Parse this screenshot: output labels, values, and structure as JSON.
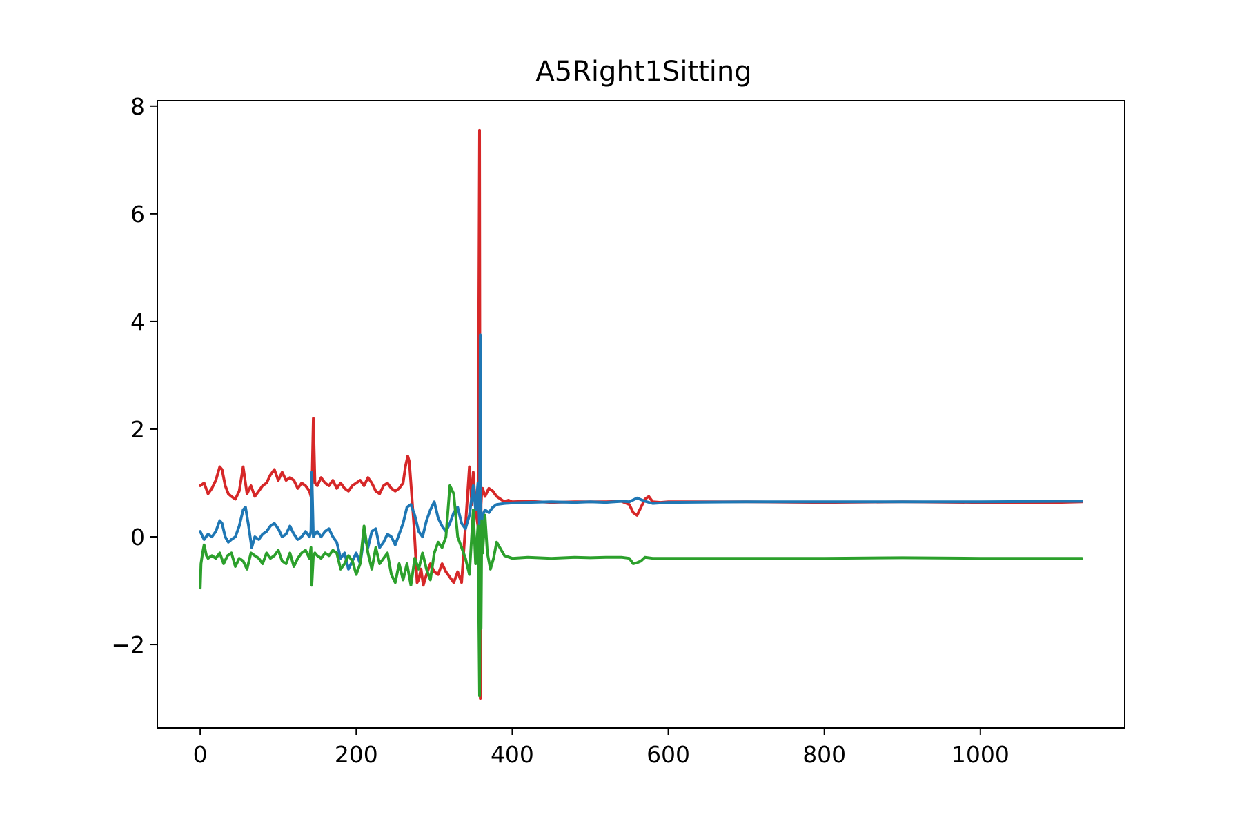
{
  "chart_data": {
    "type": "line",
    "title": "A5Right1Sitting",
    "xlabel": "",
    "ylabel": "",
    "xlim": [
      -55,
      1185
    ],
    "ylim": [
      -3.55,
      8.1
    ],
    "xticks": [
      0,
      200,
      400,
      600,
      800,
      1000
    ],
    "xtick_labels": [
      "0",
      "200",
      "400",
      "600",
      "800",
      "1000"
    ],
    "yticks": [
      -2,
      0,
      2,
      4,
      6,
      8
    ],
    "ytick_labels": [
      "−2",
      "0",
      "2",
      "4",
      "6",
      "8"
    ],
    "grid": false,
    "series": [
      {
        "color": "#d62728",
        "x": [
          0,
          5,
          10,
          15,
          20,
          25,
          28,
          32,
          36,
          40,
          45,
          50,
          55,
          60,
          65,
          70,
          75,
          80,
          85,
          90,
          95,
          100,
          105,
          110,
          115,
          120,
          125,
          130,
          135,
          140,
          142,
          143,
          145,
          147,
          150,
          155,
          160,
          165,
          170,
          175,
          180,
          185,
          190,
          195,
          200,
          205,
          210,
          215,
          220,
          225,
          230,
          235,
          240,
          245,
          250,
          255,
          260,
          263,
          266,
          268,
          270,
          272,
          274,
          276,
          278,
          280,
          283,
          286,
          290,
          295,
          300,
          305,
          310,
          315,
          320,
          325,
          330,
          335,
          340,
          345,
          348,
          350,
          353,
          356,
          358,
          359,
          360,
          361,
          362,
          365,
          370,
          375,
          380,
          385,
          390,
          395,
          400,
          420,
          450,
          480,
          500,
          520,
          540,
          550,
          555,
          560,
          565,
          570,
          575,
          580,
          590,
          600,
          700,
          800,
          900,
          1000,
          1100,
          1130
        ],
        "values": [
          0.95,
          1.0,
          0.8,
          0.9,
          1.05,
          1.3,
          1.25,
          0.95,
          0.8,
          0.75,
          0.7,
          0.85,
          1.3,
          0.8,
          0.95,
          0.75,
          0.85,
          0.95,
          1.0,
          1.15,
          1.25,
          1.05,
          1.2,
          1.05,
          1.1,
          1.05,
          0.9,
          1.0,
          0.95,
          0.85,
          0.75,
          0.8,
          2.2,
          1.0,
          0.95,
          1.1,
          1.0,
          0.95,
          1.05,
          0.9,
          1.0,
          0.9,
          0.85,
          0.95,
          1.0,
          1.05,
          0.95,
          1.1,
          1.0,
          0.85,
          0.8,
          0.95,
          1.0,
          0.9,
          0.85,
          0.9,
          1.0,
          1.3,
          1.5,
          1.4,
          1.0,
          0.6,
          0.2,
          -0.3,
          -0.85,
          -0.8,
          -0.6,
          -0.9,
          -0.7,
          -0.5,
          -0.65,
          -0.7,
          -0.5,
          -0.65,
          -0.75,
          -0.85,
          -0.65,
          -0.85,
          0.2,
          1.3,
          0.6,
          1.2,
          0.5,
          0.2,
          7.55,
          -3.0,
          0.6,
          0.85,
          0.9,
          0.75,
          0.9,
          0.85,
          0.75,
          0.7,
          0.65,
          0.68,
          0.65,
          0.66,
          0.64,
          0.65,
          0.65,
          0.65,
          0.66,
          0.6,
          0.45,
          0.4,
          0.55,
          0.7,
          0.75,
          0.65,
          0.64,
          0.65,
          0.65,
          0.64,
          0.65,
          0.64,
          0.64,
          0.65
        ]
      },
      {
        "color": "#1f77b4",
        "x": [
          0,
          5,
          10,
          15,
          20,
          25,
          28,
          32,
          36,
          40,
          45,
          50,
          55,
          58,
          62,
          66,
          70,
          75,
          80,
          85,
          90,
          95,
          100,
          105,
          110,
          115,
          120,
          125,
          130,
          135,
          140,
          142,
          143,
          145,
          147,
          150,
          155,
          160,
          165,
          170,
          175,
          180,
          185,
          190,
          195,
          200,
          205,
          210,
          215,
          220,
          225,
          230,
          235,
          240,
          245,
          250,
          255,
          260,
          265,
          270,
          275,
          280,
          285,
          290,
          295,
          300,
          305,
          310,
          315,
          320,
          325,
          330,
          335,
          340,
          345,
          350,
          353,
          356,
          358,
          359,
          360,
          361,
          362,
          365,
          370,
          375,
          380,
          390,
          400,
          420,
          450,
          480,
          500,
          520,
          540,
          550,
          560,
          570,
          580,
          600,
          700,
          800,
          900,
          1000,
          1100,
          1130
        ],
        "values": [
          0.1,
          -0.05,
          0.05,
          0.0,
          0.1,
          0.3,
          0.25,
          0.0,
          -0.1,
          -0.05,
          0.0,
          0.2,
          0.5,
          0.55,
          0.2,
          -0.2,
          0.0,
          -0.05,
          0.05,
          0.1,
          0.2,
          0.25,
          0.15,
          0.0,
          0.05,
          0.2,
          0.05,
          -0.05,
          0.0,
          0.1,
          0.0,
          0.1,
          1.2,
          0.0,
          0.05,
          0.1,
          0.0,
          0.1,
          0.15,
          0.0,
          -0.1,
          -0.4,
          -0.3,
          -0.6,
          -0.45,
          -0.3,
          -0.5,
          0.0,
          -0.2,
          0.1,
          0.15,
          -0.2,
          -0.1,
          0.05,
          0.0,
          -0.15,
          0.05,
          0.25,
          0.55,
          0.6,
          0.4,
          0.1,
          0.0,
          0.3,
          0.5,
          0.65,
          0.35,
          0.2,
          0.1,
          0.25,
          0.45,
          0.55,
          0.25,
          0.15,
          0.4,
          0.95,
          0.5,
          1.0,
          0.2,
          3.75,
          0.0,
          0.3,
          0.4,
          0.5,
          0.45,
          0.55,
          0.6,
          0.62,
          0.63,
          0.64,
          0.65,
          0.64,
          0.65,
          0.64,
          0.66,
          0.65,
          0.72,
          0.66,
          0.62,
          0.64,
          0.65,
          0.65,
          0.65,
          0.65,
          0.66,
          0.66
        ]
      },
      {
        "color": "#2ca02c",
        "x": [
          0,
          1,
          3,
          5,
          8,
          10,
          15,
          20,
          25,
          30,
          35,
          40,
          45,
          50,
          55,
          60,
          65,
          70,
          75,
          80,
          85,
          90,
          95,
          100,
          105,
          110,
          115,
          120,
          125,
          130,
          135,
          140,
          142,
          143,
          145,
          147,
          150,
          155,
          160,
          165,
          170,
          175,
          180,
          185,
          190,
          195,
          200,
          205,
          210,
          215,
          220,
          225,
          230,
          235,
          240,
          245,
          250,
          255,
          260,
          265,
          270,
          275,
          280,
          285,
          290,
          295,
          300,
          305,
          310,
          315,
          320,
          325,
          330,
          335,
          340,
          345,
          350,
          353,
          356,
          358,
          359,
          360,
          361,
          362,
          365,
          368,
          372,
          376,
          380,
          390,
          400,
          420,
          450,
          480,
          500,
          520,
          540,
          550,
          555,
          560,
          565,
          570,
          580,
          600,
          700,
          800,
          900,
          1000,
          1100,
          1130
        ],
        "values": [
          -0.95,
          -0.5,
          -0.3,
          -0.15,
          -0.35,
          -0.4,
          -0.35,
          -0.4,
          -0.3,
          -0.5,
          -0.35,
          -0.3,
          -0.55,
          -0.4,
          -0.45,
          -0.6,
          -0.3,
          -0.35,
          -0.4,
          -0.5,
          -0.3,
          -0.4,
          -0.35,
          -0.25,
          -0.45,
          -0.5,
          -0.3,
          -0.55,
          -0.4,
          -0.3,
          -0.25,
          -0.4,
          -0.2,
          -0.9,
          -0.35,
          -0.3,
          -0.35,
          -0.4,
          -0.3,
          -0.35,
          -0.25,
          -0.3,
          -0.6,
          -0.5,
          -0.35,
          -0.45,
          -0.7,
          -0.5,
          0.2,
          -0.3,
          -0.6,
          -0.2,
          -0.5,
          -0.4,
          -0.3,
          -0.7,
          -0.85,
          -0.5,
          -0.8,
          -0.5,
          -0.9,
          -0.4,
          -0.6,
          -0.3,
          -0.6,
          -0.8,
          -0.3,
          -0.1,
          -0.2,
          0.0,
          0.95,
          0.8,
          0.0,
          -0.2,
          -0.4,
          -0.7,
          0.5,
          -0.5,
          0.2,
          -2.95,
          0.2,
          -1.7,
          0.3,
          -0.3,
          0.4,
          -0.3,
          -0.6,
          -0.4,
          -0.1,
          -0.35,
          -0.4,
          -0.38,
          -0.4,
          -0.38,
          -0.39,
          -0.38,
          -0.38,
          -0.4,
          -0.5,
          -0.48,
          -0.45,
          -0.38,
          -0.4,
          -0.4,
          -0.4,
          -0.4,
          -0.39,
          -0.4,
          -0.4,
          -0.4
        ]
      }
    ]
  }
}
